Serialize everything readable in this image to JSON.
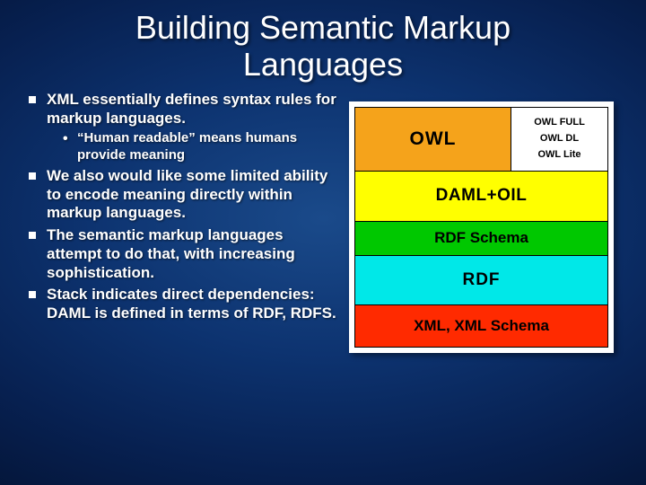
{
  "title_line1": "Building Semantic Markup",
  "title_line2": "Languages",
  "bullets": {
    "b1": "XML essentially defines syntax rules for markup languages.",
    "b1_sub": "“Human readable” means humans provide meaning",
    "b2": "We also would like some limited ability to encode meaning directly within markup languages.",
    "b3": "The semantic markup languages attempt to do that, with increasing sophistication.",
    "b4": "Stack indicates direct dependencies: DAML is defined in terms of RDF, RDFS."
  },
  "stack": {
    "layers": [
      {
        "label": "OWL",
        "color": "#f5a31b",
        "sub": [
          "OWL FULL",
          "OWL DL",
          "OWL Lite"
        ],
        "sub_bg": "#ffffff"
      },
      {
        "label": "DAML+OIL",
        "color": "#ffff00"
      },
      {
        "label": "RDF Schema",
        "color": "#00c800"
      },
      {
        "label": "RDF",
        "color": "#00e8e8"
      },
      {
        "label": "XML, XML Schema",
        "color": "#ff2a00"
      }
    ]
  },
  "style": {
    "title_fontsize": 36,
    "bullet_fontsize": 17,
    "sub_bullet_fontsize": 15,
    "stack_label_color": "#000000",
    "stack_border_color": "#000000",
    "diag_bg": "#ffffff"
  }
}
